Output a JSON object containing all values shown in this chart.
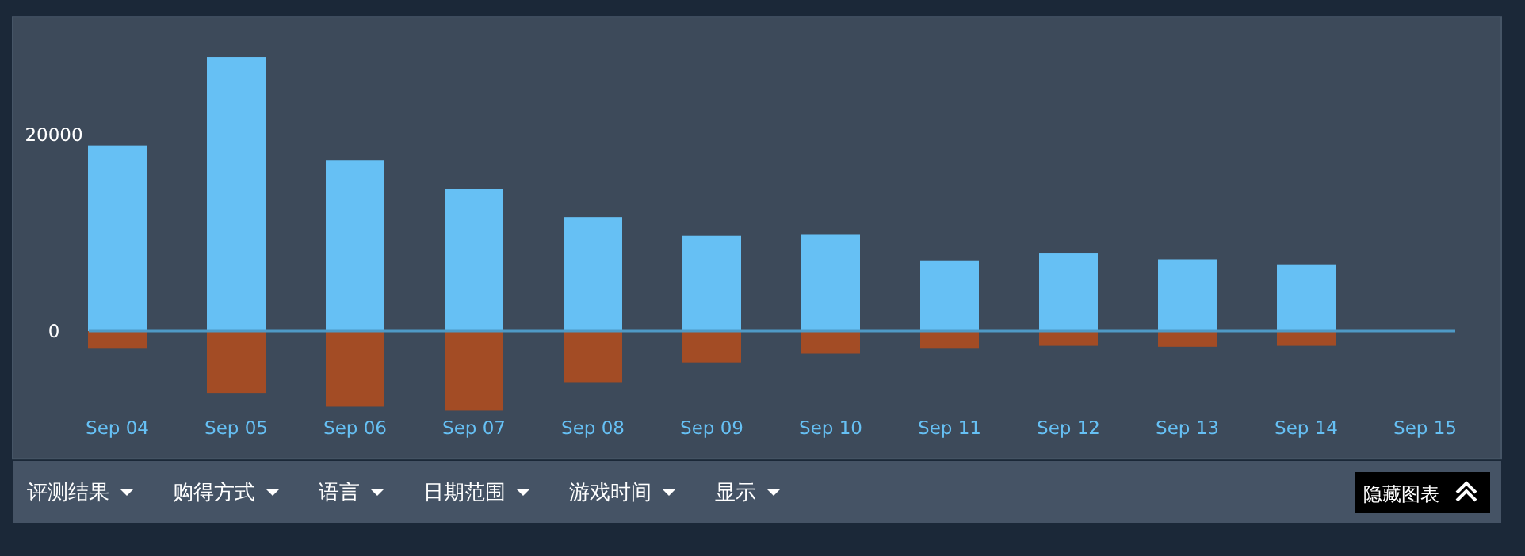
{
  "chart_data": {
    "type": "bar",
    "stacked": true,
    "categories": [
      "Sep 04",
      "Sep 05",
      "Sep 06",
      "Sep 07",
      "Sep 08",
      "Sep 09",
      "Sep 10",
      "Sep 11",
      "Sep 12",
      "Sep 13",
      "Sep 14",
      "Sep 15"
    ],
    "series": [
      {
        "color": "#66c0f4",
        "values": [
          18900,
          27900,
          17400,
          14500,
          11600,
          9700,
          9800,
          7200,
          7900,
          7300,
          6800,
          null
        ]
      },
      {
        "color": "#a34c25",
        "values": [
          -1800,
          -6300,
          -7700,
          -8100,
          -5200,
          -3200,
          -2300,
          -1800,
          -1500,
          -1600,
          -1500,
          0
        ]
      }
    ],
    "ylim": [
      -13000,
      32000
    ],
    "yticks": [
      0,
      20000
    ],
    "ref_lines": [
      {
        "axis": "y",
        "value": 0,
        "color": "#4f9ac6"
      }
    ],
    "annotations": [
      "评测结果",
      "购得方式",
      "语言",
      "日期范围",
      "游戏时间",
      "显示",
      "隐藏图表"
    ]
  }
}
